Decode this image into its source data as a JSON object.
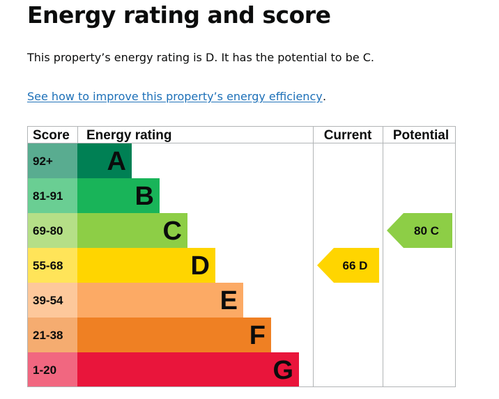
{
  "heading": "Energy rating and score",
  "summary_text": "This property’s energy rating is D. It has the potential to be C.",
  "link_text": "See how to improve this property’s energy efficiency",
  "link_trailing": ".",
  "colors": {
    "A": "#008054",
    "B": "#19b459",
    "C": "#8dce46",
    "D": "#ffd500",
    "E": "#fcaa65",
    "F": "#ef8023",
    "G": "#e9153b",
    "grid": "#b1b4b6",
    "link": "#1d70b8"
  },
  "chart_data": {
    "type": "bar",
    "headers": {
      "score": "Score",
      "rating": "Energy rating",
      "current": "Current",
      "potential": "Potential"
    },
    "bands": [
      {
        "letter": "A",
        "range": "92+",
        "min": 92,
        "max": 100
      },
      {
        "letter": "B",
        "range": "81-91",
        "min": 81,
        "max": 91
      },
      {
        "letter": "C",
        "range": "69-80",
        "min": 69,
        "max": 80
      },
      {
        "letter": "D",
        "range": "55-68",
        "min": 55,
        "max": 68
      },
      {
        "letter": "E",
        "range": "39-54",
        "min": 39,
        "max": 54
      },
      {
        "letter": "F",
        "range": "21-38",
        "min": 21,
        "max": 38
      },
      {
        "letter": "G",
        "range": "1-20",
        "min": 1,
        "max": 20
      }
    ],
    "current": {
      "score": 66,
      "letter": "D",
      "label": "66 D"
    },
    "potential": {
      "score": 80,
      "letter": "C",
      "label": "80 C"
    }
  }
}
